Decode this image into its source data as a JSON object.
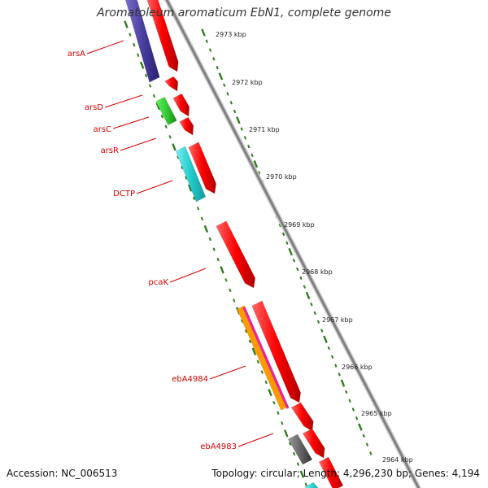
{
  "title": "Aromatoleum aromaticum EbN1, complete genome",
  "footer": {
    "accession": "Accession: NC_006513",
    "summary": "Topology: circular; Length: 4,296,230 bp; Genes: 4,194"
  },
  "colors": {
    "backbone": "#808080",
    "tick": "#2e7d1a",
    "gene_label": "#d40000",
    "forward": "#ff0000",
    "purple": "#4a3fa0",
    "green": "#33cc33",
    "cyan": "#22cccc",
    "gray": "#666666",
    "orange": "#ff9900",
    "magenta": "#ee22aa"
  },
  "kbp_labels": [
    "2973 kbp",
    "2972 kbp",
    "2971 kbp",
    "2970 kbp",
    "2969 kbp",
    "2968 kbp",
    "2967 kbp",
    "2966 kbp",
    "2965 kbp",
    "2964 kbp"
  ],
  "gene_labels": [
    "arsA",
    "arsD",
    "arsC",
    "arsR",
    "DCTP",
    "pcaK",
    "ebA4984",
    "ebA4983"
  ]
}
